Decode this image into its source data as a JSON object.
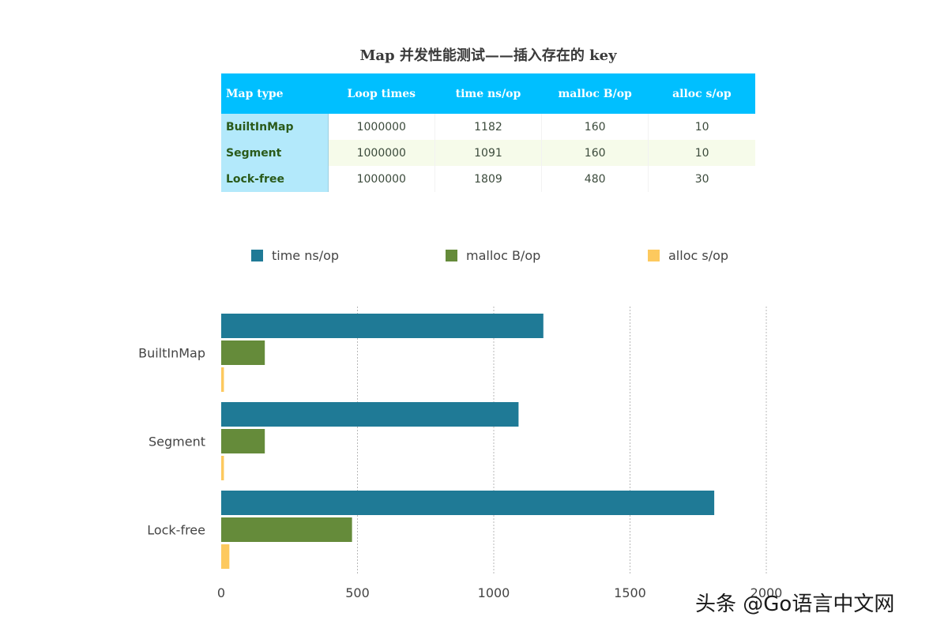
{
  "title": "Map 并发性能测试——插入存在的 key",
  "table": {
    "headers": [
      "Map type",
      "Loop times",
      "time ns/op",
      "malloc B/op",
      "alloc s/op"
    ],
    "rows": [
      [
        "BuiltInMap",
        "1000000",
        "1182",
        "160",
        "10"
      ],
      [
        "Segment",
        "1000000",
        "1091",
        "160",
        "10"
      ],
      [
        "Lock-free",
        "1000000",
        "1809",
        "480",
        "30"
      ]
    ]
  },
  "colors": {
    "time": "#1f7a96",
    "malloc": "#658b3a",
    "alloc": "#fdc95e",
    "header_bg": "#00bfff",
    "rowhead_bg": "#b3e9fb"
  },
  "chart_data": {
    "type": "bar",
    "orientation": "horizontal",
    "categories": [
      "BuiltInMap",
      "Segment",
      "Lock-free"
    ],
    "series": [
      {
        "name": "time ns/op",
        "values": [
          1182,
          1091,
          1809
        ]
      },
      {
        "name": "malloc B/op",
        "values": [
          160,
          160,
          480
        ]
      },
      {
        "name": "alloc s/op",
        "values": [
          10,
          10,
          30
        ]
      }
    ],
    "xlim": [
      0,
      2000
    ],
    "xticks": [
      "0",
      "500",
      "1000",
      "1500",
      "2000"
    ],
    "grid": true,
    "legend": "top"
  },
  "watermark": "头条 @Go语言中文网"
}
